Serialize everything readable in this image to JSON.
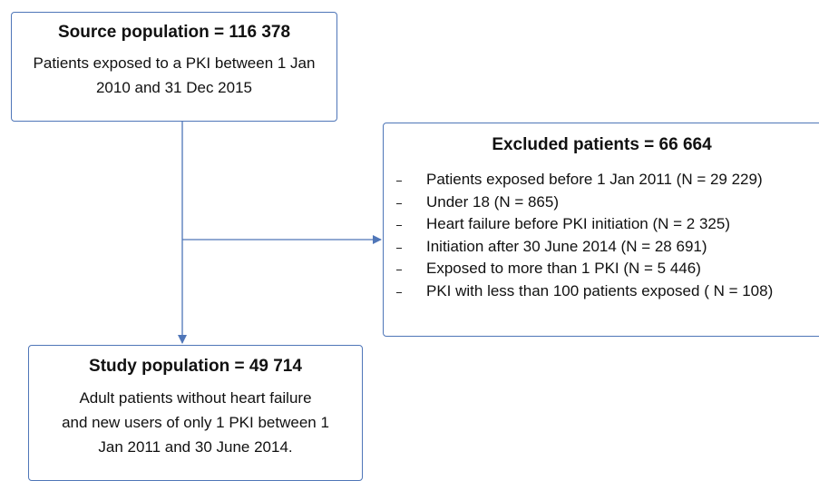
{
  "nodes": [
    {
      "title": "Source population = 116 378",
      "lines": [
        "Patients exposed to a PKI between 1 Jan",
        "2010 and 31 Dec 2015"
      ]
    },
    {
      "title": "Excluded patients = 66 664",
      "items": [
        "Patients exposed before 1 Jan 2011 (N = 29 229)",
        "Under 18 (N = 865)",
        "Heart  failure before PKI initiation (N = 2 325)",
        "Initiation after 30 June 2014 (N = 28 691)",
        "Exposed to more than 1 PKI (N = 5 446)",
        "PKI with less than 100 patients exposed ( N = 108)"
      ]
    },
    {
      "title": "Study population = 49 714",
      "lines": [
        "Adult patients without heart failure",
        "and new users of only 1 PKI between 1",
        "Jan 2011 and 30 June 2014."
      ]
    }
  ]
}
